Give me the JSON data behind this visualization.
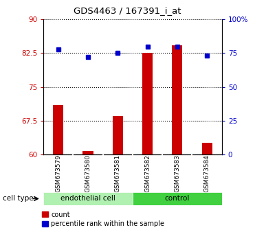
{
  "title": "GDS4463 / 167391_i_at",
  "samples": [
    "GSM673579",
    "GSM673580",
    "GSM673581",
    "GSM673582",
    "GSM673583",
    "GSM673584"
  ],
  "bar_values": [
    71.0,
    60.8,
    68.5,
    82.5,
    84.2,
    62.5
  ],
  "bar_bottom": 60,
  "percentile_right": [
    78,
    72,
    75,
    80,
    80,
    73
  ],
  "ylim_left": [
    60,
    90
  ],
  "ylim_right": [
    0,
    100
  ],
  "yticks_left": [
    60,
    67.5,
    75,
    82.5,
    90
  ],
  "ytick_labels_left": [
    "60",
    "67.5",
    "75",
    "82.5",
    "90"
  ],
  "yticks_right": [
    0,
    25,
    50,
    75,
    100
  ],
  "ytick_labels_right": [
    "0",
    "25",
    "50",
    "75",
    "100%"
  ],
  "bar_color": "#cc0000",
  "percentile_color": "#0000cc",
  "bg_color": "#ffffff",
  "cell_type_label": "cell type",
  "legend_items": [
    "count",
    "percentile rank within the sample"
  ],
  "group_colors": [
    "#b0f0b0",
    "#40d040"
  ]
}
